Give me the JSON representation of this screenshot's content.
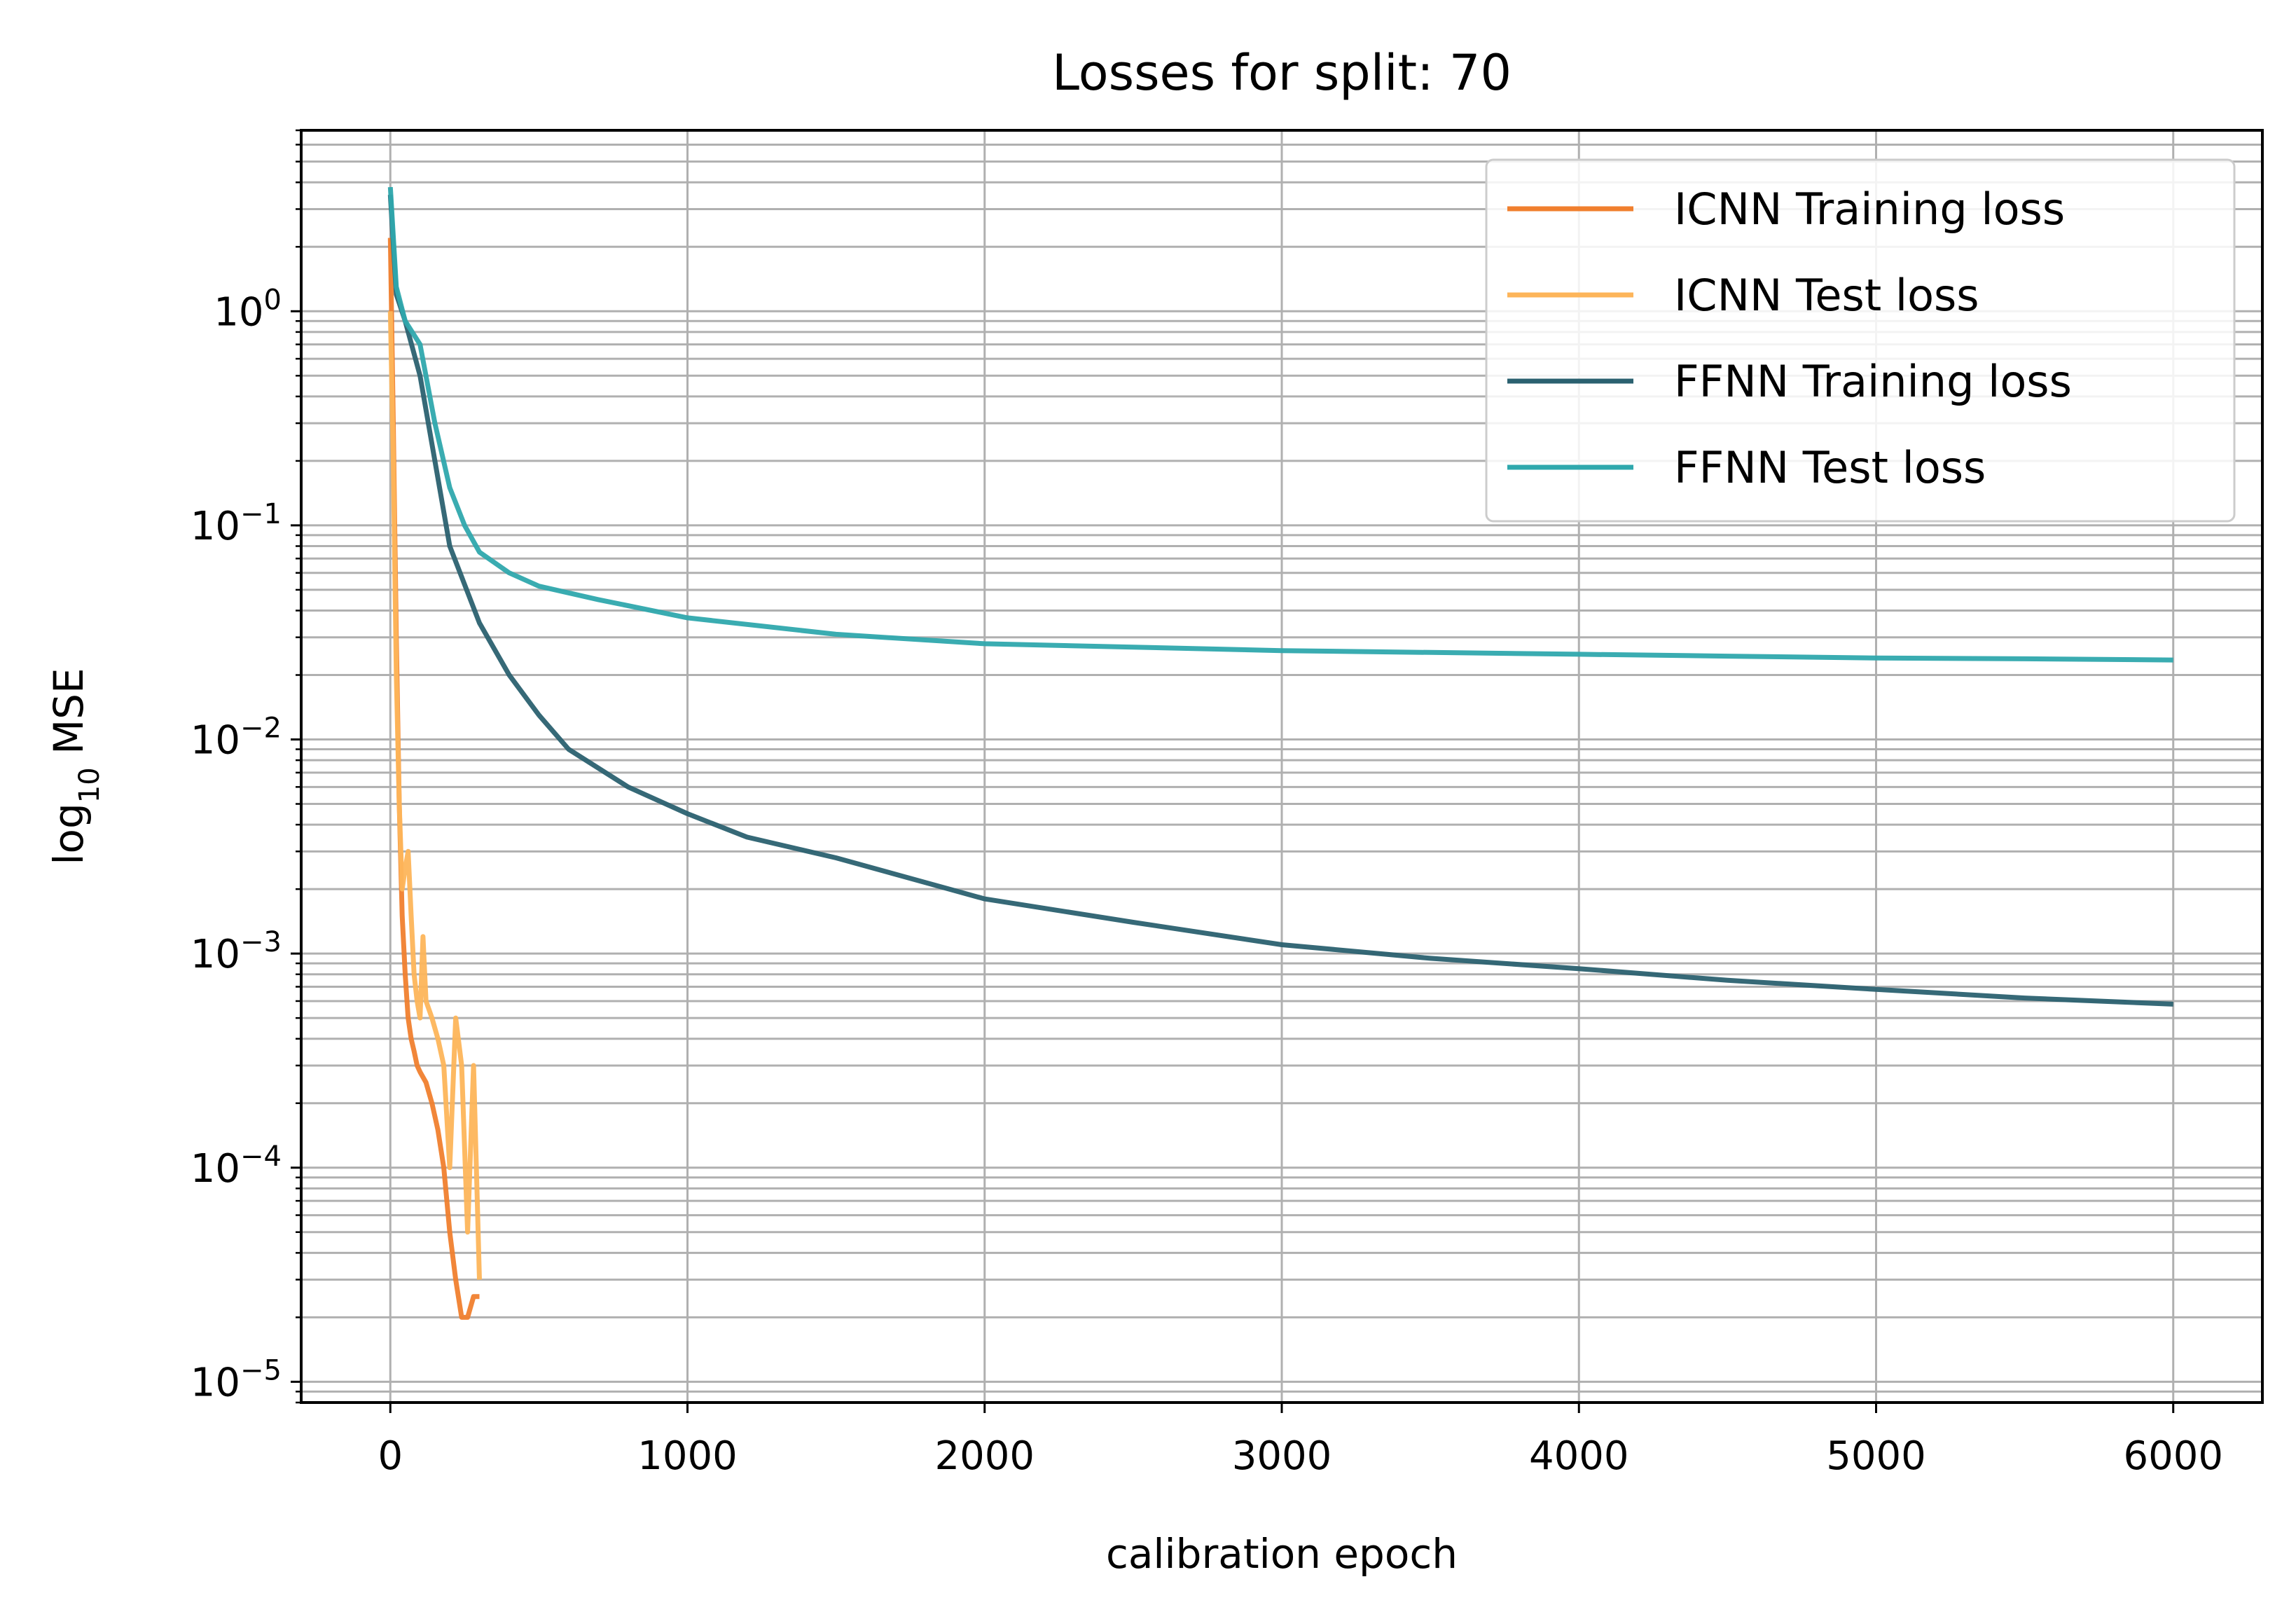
{
  "chart_data": {
    "type": "line",
    "title": "Losses for split: 70",
    "xlabel": "calibration epoch",
    "ylabel": "log",
    "ylabel_sub": "10",
    "ylabel_suffix": " MSE",
    "xlim": [
      -300,
      6300
    ],
    "ylim": [
      8e-06,
      7
    ],
    "yscale": "log",
    "grid": true,
    "legend_position": "top-right",
    "x_ticks": [
      "0",
      "1000",
      "2000",
      "3000",
      "4000",
      "5000",
      "6000"
    ],
    "y_ticks": [
      {
        "base": "10",
        "exp": "0"
      },
      {
        "base": "10",
        "exp": "−1"
      },
      {
        "base": "10",
        "exp": "−2"
      },
      {
        "base": "10",
        "exp": "−3"
      },
      {
        "base": "10",
        "exp": "−4"
      },
      {
        "base": "10",
        "exp": "−5"
      }
    ],
    "series": [
      {
        "name": "ICNN Training loss",
        "color": "#f07f2e",
        "x": [
          0,
          10,
          20,
          30,
          40,
          50,
          60,
          70,
          80,
          90,
          100,
          120,
          140,
          160,
          180,
          200,
          220,
          240,
          260,
          280,
          300
        ],
        "y": [
          2.2,
          0.3,
          0.03,
          0.005,
          0.0015,
          0.0008,
          0.0005,
          0.0004,
          0.00035,
          0.0003,
          0.00028,
          0.00025,
          0.0002,
          0.00015,
          0.0001,
          5e-05,
          3e-05,
          2e-05,
          2e-05,
          2.5e-05,
          2.5e-05
        ]
      },
      {
        "name": "ICNN Test loss",
        "color": "#fdb55a",
        "x": [
          0,
          10,
          20,
          30,
          40,
          50,
          60,
          70,
          80,
          90,
          100,
          110,
          120,
          140,
          160,
          180,
          200,
          220,
          240,
          260,
          280,
          300
        ],
        "y": [
          1.0,
          0.2,
          0.02,
          0.005,
          0.002,
          0.0025,
          0.003,
          0.0015,
          0.0008,
          0.0006,
          0.0005,
          0.0012,
          0.0006,
          0.0005,
          0.0004,
          0.0003,
          0.0001,
          0.0005,
          0.0003,
          5e-05,
          0.0003,
          3e-05
        ]
      },
      {
        "name": "FFNN Training loss",
        "color": "#2b6170",
        "x": [
          0,
          20,
          50,
          100,
          150,
          200,
          300,
          400,
          500,
          600,
          800,
          1000,
          1200,
          1500,
          2000,
          2500,
          3000,
          3500,
          4000,
          4500,
          5000,
          5500,
          6000
        ],
        "y": [
          3.5,
          1.2,
          0.9,
          0.5,
          0.2,
          0.08,
          0.035,
          0.02,
          0.013,
          0.009,
          0.006,
          0.0045,
          0.0035,
          0.0028,
          0.0018,
          0.0014,
          0.0011,
          0.00095,
          0.00085,
          0.00075,
          0.00068,
          0.00062,
          0.00058
        ]
      },
      {
        "name": "FFNN Test loss",
        "color": "#2fa8ad",
        "x": [
          0,
          20,
          50,
          100,
          150,
          200,
          250,
          300,
          400,
          500,
          700,
          1000,
          1500,
          2000,
          2500,
          3000,
          3500,
          4000,
          4500,
          5000,
          5500,
          6000
        ],
        "y": [
          3.8,
          1.3,
          0.9,
          0.7,
          0.3,
          0.15,
          0.1,
          0.075,
          0.06,
          0.052,
          0.045,
          0.037,
          0.031,
          0.028,
          0.027,
          0.026,
          0.0255,
          0.025,
          0.0245,
          0.024,
          0.0238,
          0.0235
        ]
      }
    ]
  }
}
